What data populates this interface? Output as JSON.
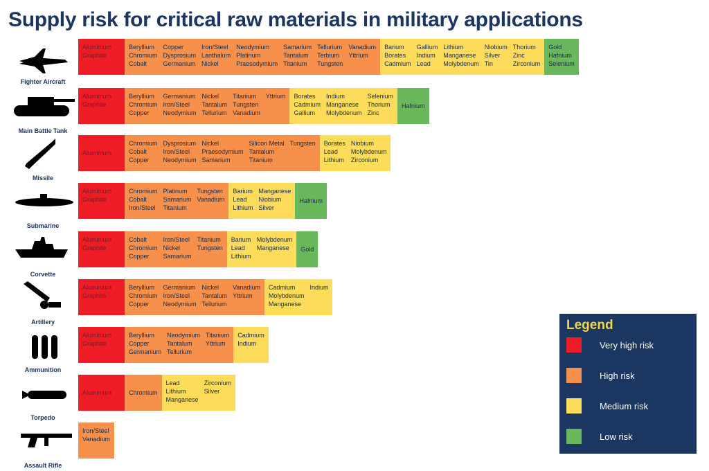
{
  "title": "Supply risk for critical raw materials in military applications",
  "legend": {
    "title": "Legend",
    "items": [
      {
        "label": "Very high risk",
        "color": "#ee1c25"
      },
      {
        "label": "High risk",
        "color": "#f7904b"
      },
      {
        "label": "Medium risk",
        "color": "#fddc5c"
      },
      {
        "label": "Low risk",
        "color": "#6ab85c"
      }
    ]
  },
  "rows": [
    {
      "label": "Fighter Aircraft",
      "segments": [
        {
          "color": "#ee1c25",
          "columns": [
            [
              "Aluminium",
              "Graphite"
            ]
          ]
        },
        {
          "color": "#f7904b",
          "columns": [
            [
              "Beryllium",
              "Chromium",
              "Cobalt"
            ],
            [
              "Copper",
              "Dysprosium",
              "Germanium"
            ],
            [
              "Iron/Steel",
              "Lanthalum",
              "Nickel"
            ],
            [
              "Neodymium",
              "Platinum",
              "Praesodymium"
            ],
            [
              "Samarium",
              "Tantalum",
              "Titanium"
            ],
            [
              "Tellurium",
              "Terbium",
              "Tungsten"
            ],
            [
              "Vanadium",
              "Yttrium"
            ]
          ]
        },
        {
          "color": "#fddc5c",
          "columns": [
            [
              "Barium",
              "Borates",
              "Cadmium"
            ],
            [
              "Gallium",
              "Indium",
              "Lead"
            ],
            [
              "Lithium",
              "Manganese",
              "Molybdenum"
            ],
            [
              "Niobium",
              "Silver",
              "Tin"
            ],
            [
              "Thorium",
              "Zinc",
              "Zirconium"
            ]
          ]
        },
        {
          "color": "#6ab85c",
          "columns": [
            [
              "Gold",
              "Hafnium",
              "Selenium"
            ]
          ]
        }
      ]
    },
    {
      "label": "Main Battle Tank",
      "segments": [
        {
          "color": "#ee1c25",
          "columns": [
            [
              "Aluminium",
              "Graphite"
            ]
          ]
        },
        {
          "color": "#f7904b",
          "columns": [
            [
              "Beryllium",
              "Chromium",
              "Copper"
            ],
            [
              "Germanium",
              "Iron/Steel",
              "Neodymium"
            ],
            [
              "Nickel",
              "Tantalum",
              "Tellurium"
            ],
            [
              "Titanium",
              "Tungsten",
              "Vanadium"
            ],
            [
              "Yttrium"
            ]
          ]
        },
        {
          "color": "#fddc5c",
          "columns": [
            [
              "Borates",
              "Cadmium",
              "Gallium"
            ],
            [
              "Indium",
              "Manganese",
              "Molybdenum"
            ],
            [
              "Selenium",
              "Thorium",
              "Zinc"
            ]
          ]
        },
        {
          "color": "#6ab85c",
          "columns": [
            [
              "Hafnium"
            ]
          ]
        }
      ]
    },
    {
      "label": "Missile",
      "segments": [
        {
          "color": "#ee1c25",
          "columns": [
            [
              "Aluminium"
            ]
          ]
        },
        {
          "color": "#f7904b",
          "columns": [
            [
              "Chromium",
              "Cobalt",
              "Copper"
            ],
            [
              "Dysprosium",
              "Iron/Steel",
              "Neodymium"
            ],
            [
              "Nickel",
              "Praesodymium",
              "Samarium"
            ],
            [
              "Silicon Metal",
              "Tantalum",
              "Titanium"
            ],
            [
              "Tungsten"
            ]
          ]
        },
        {
          "color": "#fddc5c",
          "columns": [
            [
              "Borates",
              "Lead",
              "Lithium"
            ],
            [
              "Niobium",
              "Molybdenum",
              "Zirconium"
            ]
          ]
        }
      ]
    },
    {
      "label": "Submarine",
      "segments": [
        {
          "color": "#ee1c25",
          "columns": [
            [
              "Aluminium",
              "Graphite"
            ]
          ]
        },
        {
          "color": "#f7904b",
          "columns": [
            [
              "Chromium",
              "Cobalt",
              "Iron/Steel"
            ],
            [
              "Platinum",
              "Samarium",
              "Titanium"
            ],
            [
              "Tungsten",
              "Vanadium"
            ]
          ]
        },
        {
          "color": "#fddc5c",
          "columns": [
            [
              "Barium",
              "Lead",
              "Lithium"
            ],
            [
              "Manganese",
              "Niobium",
              "Silver"
            ]
          ]
        },
        {
          "color": "#6ab85c",
          "columns": [
            [
              "Hafnium"
            ]
          ]
        }
      ]
    },
    {
      "label": "Corvette",
      "segments": [
        {
          "color": "#ee1c25",
          "columns": [
            [
              "Aluminium",
              "Graphite"
            ]
          ]
        },
        {
          "color": "#f7904b",
          "columns": [
            [
              "Cobalt",
              "Chromium",
              "Copper"
            ],
            [
              "Iron/Steel",
              "Nickel",
              "Samarium"
            ],
            [
              "Titanium",
              "Tungsten"
            ]
          ]
        },
        {
          "color": "#fddc5c",
          "columns": [
            [
              "Barium",
              "Lead",
              "Lithium"
            ],
            [
              "Molybdenum",
              "Manganese"
            ]
          ]
        },
        {
          "color": "#6ab85c",
          "columns": [
            [
              "Gold"
            ]
          ]
        }
      ]
    },
    {
      "label": "Artillery",
      "segments": [
        {
          "color": "#ee1c25",
          "columns": [
            [
              "Aluminium",
              "Graphite"
            ]
          ]
        },
        {
          "color": "#f7904b",
          "columns": [
            [
              "Beryllium",
              "Chromium",
              "Copper"
            ],
            [
              "Germanium",
              "Iron/Steel",
              "Neodymium"
            ],
            [
              "Nickel",
              "Tantalum",
              "Tellurium"
            ],
            [
              "Vanadium",
              "Yttrium"
            ]
          ]
        },
        {
          "color": "#fddc5c",
          "columns": [
            [
              "Cadmium",
              "Molybdenum",
              "Manganese"
            ],
            [
              "Indium"
            ]
          ]
        }
      ]
    },
    {
      "label": "Ammunition",
      "segments": [
        {
          "color": "#ee1c25",
          "columns": [
            [
              "Aluminium",
              "Graphite"
            ]
          ]
        },
        {
          "color": "#f7904b",
          "columns": [
            [
              "Beryllium",
              "Copper",
              "Germanium"
            ],
            [
              "Neodymium",
              "Tantalum",
              "Tellurium"
            ],
            [
              "Titanium",
              "Yttrium"
            ]
          ]
        },
        {
          "color": "#fddc5c",
          "columns": [
            [
              "Cadmium",
              "Indium"
            ]
          ]
        }
      ]
    },
    {
      "label": "Torpedo",
      "segments": [
        {
          "color": "#ee1c25",
          "columns": [
            [
              "Aluminium"
            ]
          ]
        },
        {
          "color": "#f7904b",
          "columns": [
            [
              "Chromium"
            ]
          ]
        },
        {
          "color": "#fddc5c",
          "columns": [
            [
              "Lead",
              "Lithium",
              "Manganese"
            ],
            [
              "Zirconium",
              "Silver"
            ]
          ]
        }
      ]
    },
    {
      "label": "Assault Rifle",
      "segments": [
        {
          "color": "#f7904b",
          "columns": [
            [
              "Iron/Steel",
              "Vanadium"
            ]
          ]
        }
      ]
    }
  ]
}
